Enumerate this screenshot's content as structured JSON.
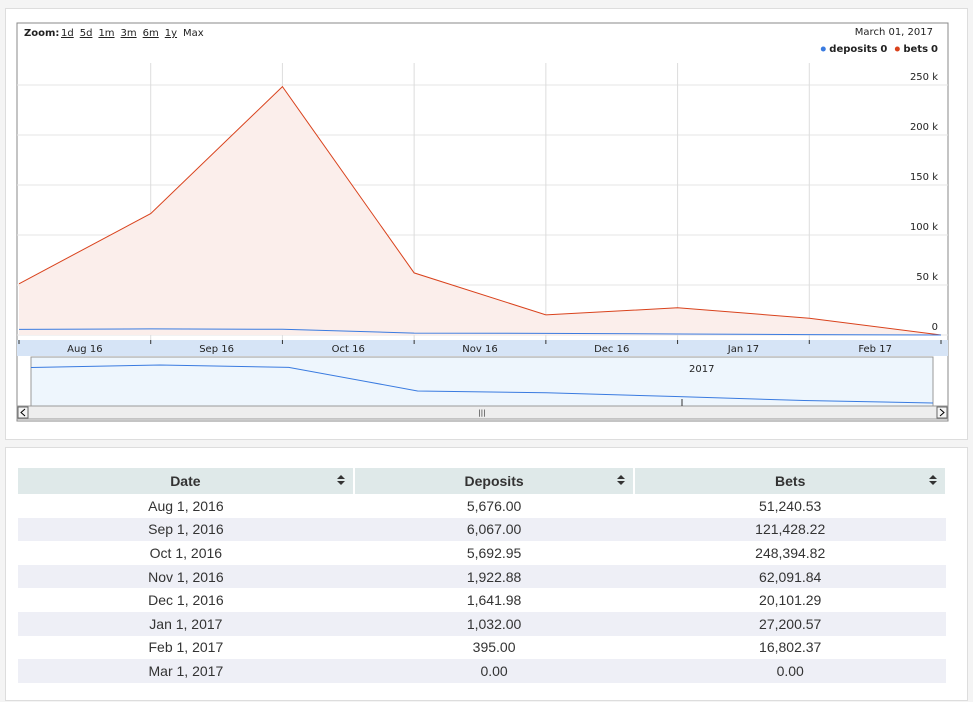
{
  "chart_data": {
    "type": "area",
    "zoom_label": "Zoom:",
    "zoom_options": [
      "1d",
      "5d",
      "1m",
      "3m",
      "6m",
      "1y",
      "Max"
    ],
    "date_label": "March 01, 2017",
    "categories": [
      "Aug 1, 2016",
      "Sep 1, 2016",
      "Oct 1, 2016",
      "Nov 1, 2016",
      "Dec 1, 2016",
      "Jan 1, 2017",
      "Feb 1, 2017",
      "Mar 1, 2017"
    ],
    "xlabels": [
      "Aug 16",
      "Sep 16",
      "Oct 16",
      "Nov 16",
      "Dec 16",
      "Jan 17",
      "Feb 17"
    ],
    "series": [
      {
        "name": "deposits",
        "legend_value": 0,
        "color": "#3a7be0",
        "values": [
          5676,
          6067,
          5692.95,
          1922.88,
          1641.98,
          1032,
          395,
          0
        ]
      },
      {
        "name": "bets",
        "legend_value": 0,
        "color": "#d9421c",
        "fill": "#fbeeeb",
        "values": [
          51240.53,
          121428.22,
          248394.82,
          62091.84,
          20101.29,
          27200.57,
          16802.37,
          0
        ]
      }
    ],
    "ylim": [
      0,
      272000
    ],
    "yticks": [
      0,
      {
        "value": 50000,
        "label": "50 k"
      },
      {
        "value": 100000,
        "label": "100 k"
      },
      {
        "value": 150000,
        "label": "150 k"
      },
      {
        "value": 200000,
        "label": "200 k"
      },
      {
        "value": 250000,
        "label": "250 k"
      }
    ],
    "grid": true,
    "navigator_label": "2017"
  },
  "table": {
    "headers": [
      "Date",
      "Deposits",
      "Bets"
    ],
    "rows": [
      [
        "Aug 1, 2016",
        "5,676.00",
        "51,240.53"
      ],
      [
        "Sep 1, 2016",
        "6,067.00",
        "121,428.22"
      ],
      [
        "Oct 1, 2016",
        "5,692.95",
        "248,394.82"
      ],
      [
        "Nov 1, 2016",
        "1,922.88",
        "62,091.84"
      ],
      [
        "Dec 1, 2016",
        "1,641.98",
        "20,101.29"
      ],
      [
        "Jan 1, 2017",
        "1,032.00",
        "27,200.57"
      ],
      [
        "Feb 1, 2017",
        "395.00",
        "16,802.37"
      ],
      [
        "Mar 1, 2017",
        "0.00",
        "0.00"
      ]
    ]
  }
}
